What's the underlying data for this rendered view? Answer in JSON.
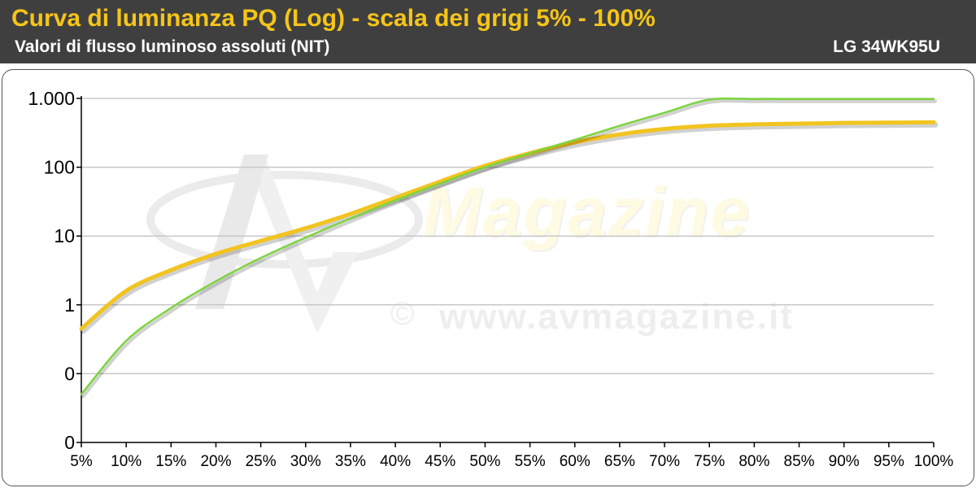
{
  "header": {
    "title": "Curva di luminanza PQ (Log) - scala dei grigi 5% - 100%",
    "subtitle": "Valori di flusso luminoso assoluti (NIT)",
    "model": "LG 34WK95U"
  },
  "watermark": {
    "brand": "Magazine",
    "url": "www.avmagazine.it",
    "copyright_symbol": "©"
  },
  "colors": {
    "header_bg": "#3f3f3f",
    "title": "#f5c518",
    "series_reference": "#7cd33c",
    "series_measured": "#f2c420",
    "grid": "#c8c8c8"
  },
  "chart_data": {
    "type": "line",
    "title": "Curva di luminanza PQ (Log) - scala dei grigi 5% - 100%",
    "subtitle": "Valori di flusso luminoso assoluti (NIT)",
    "xlabel": "",
    "ylabel": "",
    "y_scale": "log",
    "y_tick_labels": [
      "0",
      "0",
      "1",
      "10",
      "100",
      "1.000"
    ],
    "y_tick_values": [
      0.01,
      0.1,
      1,
      10,
      100,
      1000
    ],
    "grid": true,
    "legend": "none",
    "categories": [
      "5%",
      "10%",
      "15%",
      "20%",
      "25%",
      "30%",
      "35%",
      "40%",
      "45%",
      "50%",
      "55%",
      "60%",
      "65%",
      "70%",
      "75%",
      "80%",
      "85%",
      "90%",
      "95%",
      "100%"
    ],
    "series": [
      {
        "color": "#7cd33c",
        "values": [
          0.05,
          0.3,
          0.9,
          2.2,
          4.8,
          9.5,
          18,
          33,
          58,
          100,
          160,
          250,
          400,
          620,
          960,
          980,
          980,
          980,
          980,
          980
        ]
      },
      {
        "color": "#f2c420",
        "values": [
          0.45,
          1.6,
          3.2,
          5.5,
          8.5,
          13,
          21,
          36,
          62,
          105,
          160,
          230,
          300,
          360,
          400,
          420,
          430,
          440,
          445,
          450
        ]
      }
    ]
  }
}
